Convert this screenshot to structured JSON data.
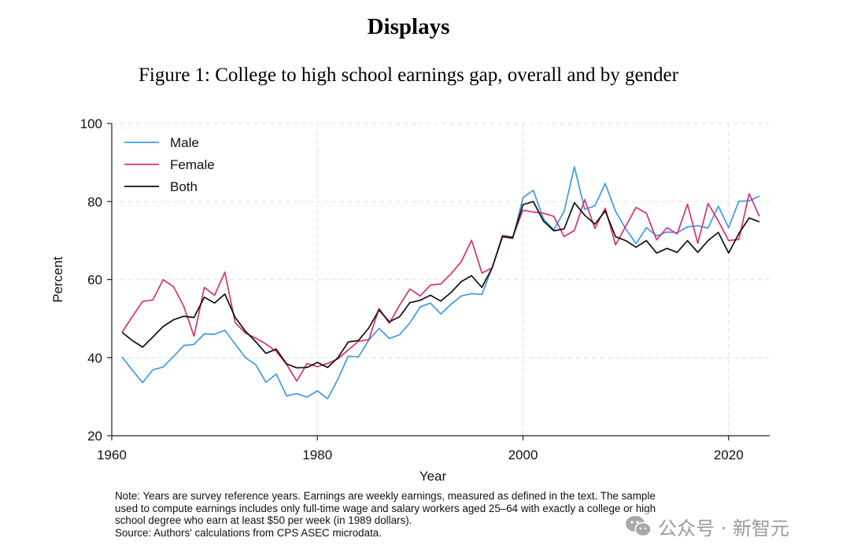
{
  "page": {
    "heading": "Displays",
    "caption": "Figure 1: College to high school earnings gap, overall and by gender",
    "note_lines": [
      "Note: Years are survey reference years. Earnings are weekly earnings, measured as defined in the text. The sample",
      "used to compute earnings includes only full-time wage and salary workers aged 25–64 with exactly a college or high",
      "school degree who earn at least $50 per week (in 1989 dollars).",
      "Source: Authors' calculations from CPS ASEC microdata."
    ],
    "watermark": "公众号 · 新智元"
  },
  "chart_data": {
    "type": "line",
    "title": "",
    "xlabel": "Year",
    "ylabel": "Percent",
    "xlim": [
      1960,
      2024
    ],
    "ylim": [
      20,
      100
    ],
    "xticks": [
      1960,
      1980,
      2000,
      2020
    ],
    "yticks": [
      20,
      40,
      60,
      80,
      100
    ],
    "grid": true,
    "legend": "top-left",
    "x": [
      1961,
      1962,
      1963,
      1964,
      1965,
      1966,
      1967,
      1968,
      1969,
      1970,
      1971,
      1972,
      1973,
      1974,
      1975,
      1976,
      1977,
      1978,
      1979,
      1980,
      1981,
      1982,
      1983,
      1984,
      1985,
      1986,
      1987,
      1988,
      1989,
      1990,
      1991,
      1992,
      1993,
      1994,
      1995,
      1996,
      1997,
      1998,
      1999,
      2000,
      2001,
      2002,
      2003,
      2004,
      2005,
      2006,
      2007,
      2008,
      2009,
      2010,
      2011,
      2012,
      2013,
      2014,
      2015,
      2016,
      2017,
      2018,
      2019,
      2020,
      2021,
      2022,
      2023
    ],
    "series": [
      {
        "name": "Male",
        "color": "#3d9be9",
        "values": [
          40.2,
          36.8,
          33.6,
          36.9,
          37.6,
          40.3,
          43.1,
          43.4,
          46.1,
          46.0,
          47.0,
          43.5,
          40.0,
          38.2,
          33.7,
          35.8,
          30.2,
          30.8,
          29.9,
          31.5,
          29.5,
          34.5,
          40.4,
          40.2,
          44.5,
          47.5,
          44.9,
          45.9,
          48.9,
          53.0,
          54.0,
          51.2,
          53.7,
          55.8,
          56.4,
          56.2,
          63.0,
          71.0,
          70.5,
          81.0,
          82.9,
          75.5,
          72.8,
          77.5,
          88.9,
          78.0,
          78.9,
          84.6,
          77.5,
          73.0,
          69.2,
          73.3,
          71.2,
          72.2,
          72.0,
          73.5,
          73.8,
          73.2,
          78.8,
          73.3,
          80.1,
          80.2,
          81.4
        ]
      },
      {
        "name": "Female",
        "color": "#d9336b",
        "values": [
          46.5,
          50.5,
          54.4,
          54.8,
          60.0,
          58.2,
          53.2,
          45.5,
          58.0,
          56.0,
          61.9,
          49.0,
          46.3,
          45.0,
          43.5,
          41.6,
          38.3,
          34.0,
          38.5,
          37.7,
          38.5,
          39.7,
          42.0,
          44.2,
          44.6,
          52.6,
          48.8,
          53.5,
          57.6,
          55.8,
          58.6,
          58.9,
          61.5,
          64.6,
          70.1,
          61.7,
          63.0,
          71.3,
          70.9,
          77.8,
          77.3,
          77.0,
          76.2,
          71.0,
          72.6,
          80.5,
          73.1,
          78.3,
          68.9,
          73.7,
          78.5,
          77.0,
          70.2,
          73.3,
          71.7,
          79.3,
          69.3,
          79.5,
          75.0,
          70.0,
          70.3,
          82.0,
          76.2
        ]
      },
      {
        "name": "Both",
        "color": "#111111",
        "values": [
          46.5,
          44.4,
          42.7,
          45.3,
          48.0,
          49.7,
          50.6,
          50.3,
          55.5,
          54.0,
          56.3,
          50.3,
          46.8,
          44.1,
          41.1,
          42.2,
          38.4,
          37.4,
          37.5,
          38.8,
          37.5,
          40.0,
          44.0,
          44.4,
          47.6,
          52.2,
          49.2,
          50.5,
          54.1,
          54.7,
          56.0,
          54.5,
          56.7,
          59.5,
          61.0,
          58.0,
          63.0,
          71.0,
          70.7,
          79.2,
          80.0,
          75.0,
          72.5,
          73.0,
          79.7,
          76.5,
          74.2,
          77.6,
          71.0,
          70.0,
          68.3,
          70.0,
          66.8,
          68.0,
          67.0,
          70.0,
          67.0,
          70.0,
          72.1,
          66.8,
          71.8,
          75.8,
          74.8
        ]
      }
    ]
  }
}
